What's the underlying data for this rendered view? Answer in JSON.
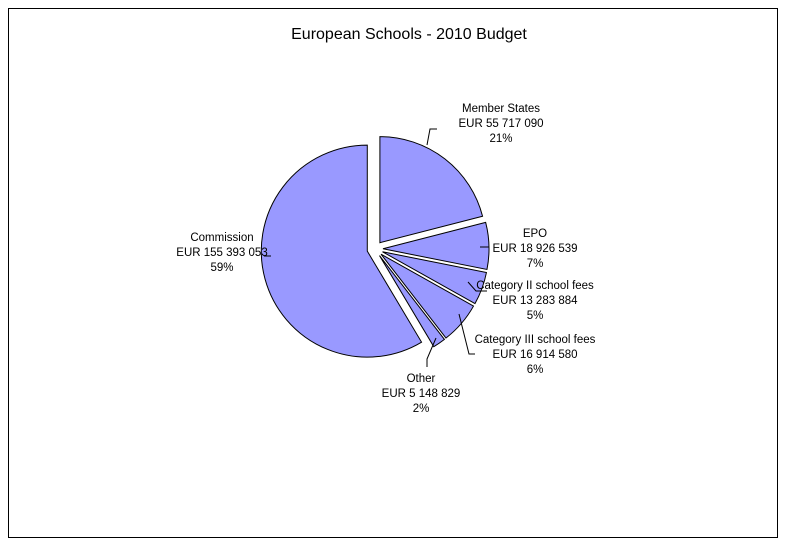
{
  "chart_data": {
    "type": "pie",
    "title": "European Schools - 2010 Budget",
    "slice_color": "#9999ff",
    "slices": [
      {
        "name": "Member States",
        "value_text": "EUR 55 717 090",
        "value": 55717090,
        "percent": "21%"
      },
      {
        "name": "EPO",
        "value_text": "EUR 18 926 539",
        "value": 18926539,
        "percent": "7%"
      },
      {
        "name": "Category II school fees",
        "value_text": "EUR 13 283 884",
        "value": 13283884,
        "percent": "5%"
      },
      {
        "name": "Category III school fees",
        "value_text": "EUR 16 914 580",
        "value": 16914580,
        "percent": "6%"
      },
      {
        "name": "Other",
        "value_text": "EUR 5 148 829",
        "value": 5148829,
        "percent": "2%"
      },
      {
        "name": "Commission",
        "value_text": "EUR 155 393 053",
        "value": 155393053,
        "percent": "59%"
      }
    ]
  }
}
